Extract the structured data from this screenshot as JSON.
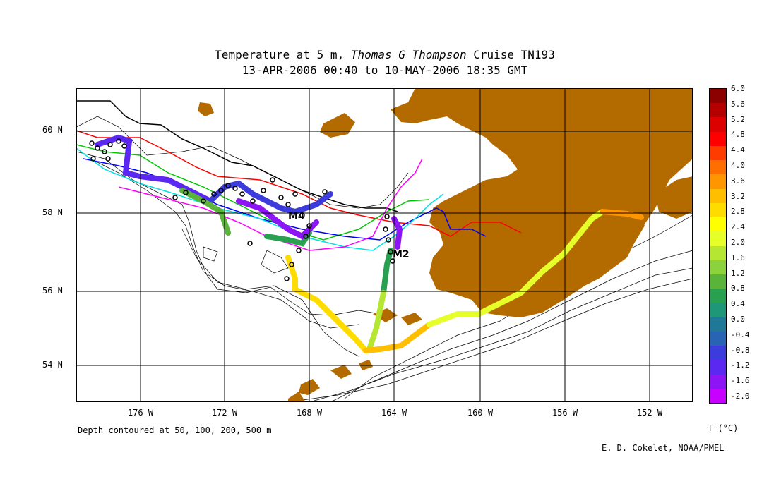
{
  "title": {
    "prefix": "Temperature at 5 m, ",
    "ship": "Thomas G  Thompson",
    "suffix": " Cruise TN193",
    "dates": "13-APR-2006 00:40 to 10-MAY-2006 18:35 GMT"
  },
  "lat_labels": [
    "60 N",
    "58 N",
    "56 N",
    "54 N"
  ],
  "lon_labels": [
    "176 W",
    "172 W",
    "168 W",
    "164 W",
    "160 W",
    "156 W",
    "152 W"
  ],
  "station_labels": [
    "M4",
    "M2"
  ],
  "depth_note": "Depth contoured at 50, 100, 200, 500 m",
  "unit_label": "T (°C)",
  "credit": "E. D. Cokelet, NOAA/PMEL",
  "colorbar": {
    "labels": [
      "6.0",
      "5.6",
      "5.2",
      "4.8",
      "4.4",
      "4.0",
      "3.6",
      "3.2",
      "2.8",
      "2.4",
      "2.0",
      "1.6",
      "1.2",
      "0.8",
      "0.4",
      "0.0",
      "-0.4",
      "-0.8",
      "-1.2",
      "-1.6",
      "-2.0"
    ],
    "colors": [
      "#8b0000",
      "#b40000",
      "#dc0000",
      "#ff0000",
      "#ff3c00",
      "#ff6e00",
      "#ff9600",
      "#ffbe00",
      "#ffdc00",
      "#ffff00",
      "#e6ff28",
      "#b4e632",
      "#8cd23c",
      "#5ab43c",
      "#28a050",
      "#1e9678",
      "#1e7896",
      "#2864b4",
      "#3c3cdc",
      "#5a28f0",
      "#8c14f5",
      "#c800ff"
    ]
  },
  "land_color": "#b36b00"
}
